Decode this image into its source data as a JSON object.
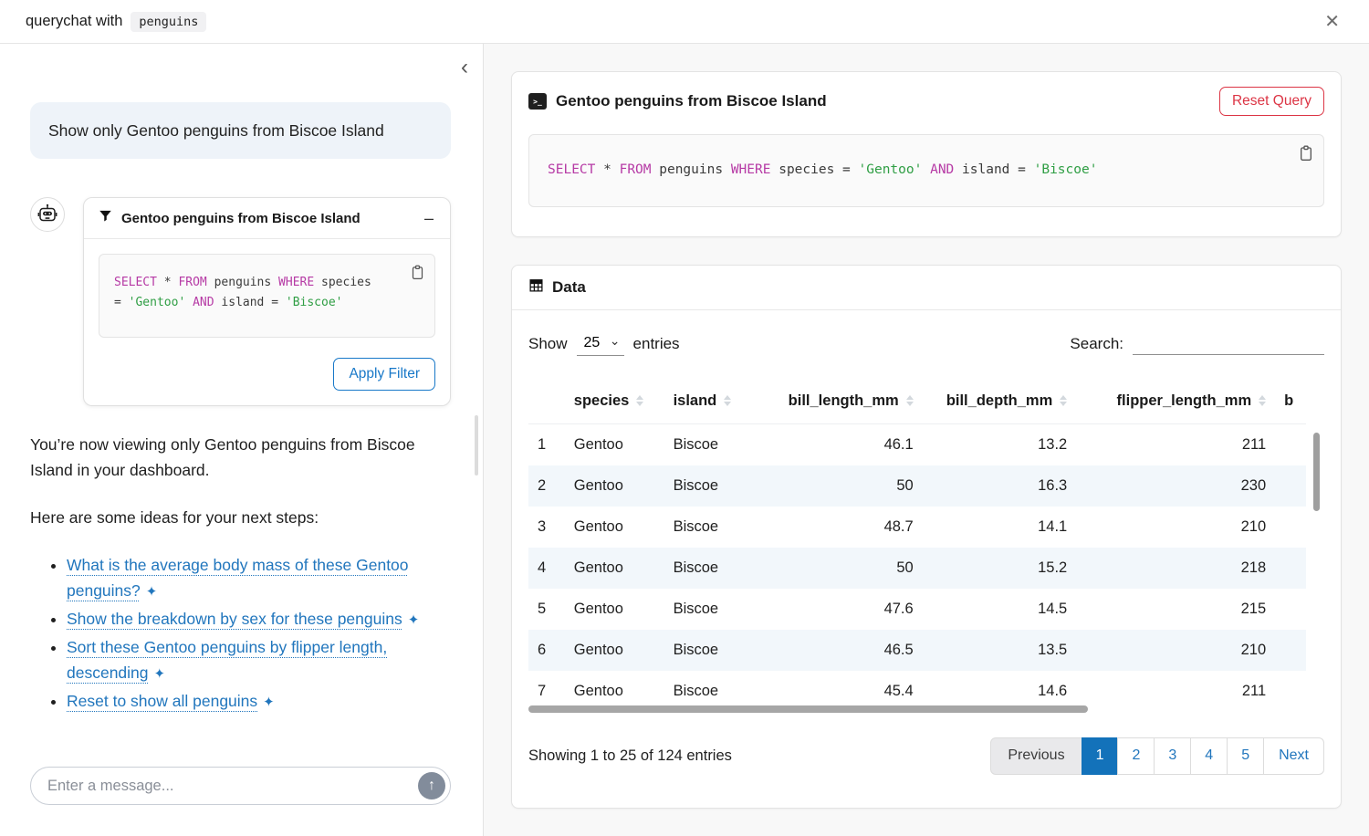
{
  "header": {
    "title_prefix": "querychat with",
    "dataset": "penguins"
  },
  "icons": {
    "close": "✕",
    "collapse_chevron": "‹",
    "minimize": "–",
    "sparkle": "✦",
    "send_arrow": "↑",
    "terminal_glyph": ">_",
    "caret": "⌄"
  },
  "chat": {
    "user_message": "Show only Gentoo penguins from Biscoe Island",
    "filter_card": {
      "title": "Gentoo penguins from Biscoe Island",
      "apply_label": "Apply Filter",
      "sql_lines": [
        [
          {
            "t": "kw",
            "v": "SELECT"
          },
          {
            "t": "p",
            "v": " * "
          },
          {
            "t": "kw",
            "v": "FROM"
          },
          {
            "t": "p",
            "v": " penguins "
          },
          {
            "t": "kw",
            "v": "WHERE"
          },
          {
            "t": "p",
            "v": " species"
          }
        ],
        [
          {
            "t": "p",
            "v": "= "
          },
          {
            "t": "str",
            "v": "'Gentoo'"
          },
          {
            "t": "p",
            "v": " "
          },
          {
            "t": "kw",
            "v": "AND"
          },
          {
            "t": "p",
            "v": " island = "
          },
          {
            "t": "str",
            "v": "'Biscoe'"
          }
        ]
      ]
    },
    "response": {
      "p1": "You’re now viewing only Gentoo penguins from Biscoe Island in your dashboard.",
      "p2": "Here are some ideas for your next steps:",
      "suggestions": [
        "What is the average body mass of these Gentoo penguins?",
        "Show the breakdown by sex for these penguins",
        "Sort these Gentoo penguins by flipper length, descending",
        "Reset to show all penguins"
      ]
    },
    "input_placeholder": "Enter a message..."
  },
  "query_card": {
    "title": "Gentoo penguins from Biscoe Island",
    "reset_label": "Reset Query",
    "sql_tokens": [
      {
        "t": "kw",
        "v": "SELECT"
      },
      {
        "t": "p",
        "v": " * "
      },
      {
        "t": "kw",
        "v": "FROM"
      },
      {
        "t": "p",
        "v": " penguins "
      },
      {
        "t": "kw",
        "v": "WHERE"
      },
      {
        "t": "p",
        "v": " species = "
      },
      {
        "t": "str",
        "v": "'Gentoo'"
      },
      {
        "t": "p",
        "v": " "
      },
      {
        "t": "kw",
        "v": "AND"
      },
      {
        "t": "p",
        "v": " island = "
      },
      {
        "t": "str",
        "v": "'Biscoe'"
      }
    ]
  },
  "data_card": {
    "title": "Data",
    "controls": {
      "show_label": "Show",
      "page_size": "25",
      "entries_label": "entries",
      "search_label": "Search:"
    },
    "table": {
      "columns": [
        "species",
        "island",
        "bill_length_mm",
        "bill_depth_mm",
        "flipper_length_mm",
        "b"
      ],
      "rows": [
        [
          "1",
          "Gentoo",
          "Biscoe",
          "46.1",
          "13.2",
          "211"
        ],
        [
          "2",
          "Gentoo",
          "Biscoe",
          "50",
          "16.3",
          "230"
        ],
        [
          "3",
          "Gentoo",
          "Biscoe",
          "48.7",
          "14.1",
          "210"
        ],
        [
          "4",
          "Gentoo",
          "Biscoe",
          "50",
          "15.2",
          "218"
        ],
        [
          "5",
          "Gentoo",
          "Biscoe",
          "47.6",
          "14.5",
          "215"
        ],
        [
          "6",
          "Gentoo",
          "Biscoe",
          "46.5",
          "13.5",
          "210"
        ],
        [
          "7",
          "Gentoo",
          "Biscoe",
          "45.4",
          "14.6",
          "211"
        ]
      ]
    },
    "footer": {
      "info": "Showing 1 to 25 of 124 entries",
      "prev_label": "Previous",
      "pages": [
        "1",
        "2",
        "3",
        "4",
        "5"
      ],
      "active_page": "1",
      "next_label": "Next"
    }
  },
  "colors": {
    "accent_blue": "#2176bd",
    "active_page_bg": "#1372ba",
    "danger_red": "#dc3545",
    "sql_keyword": "#b63aa5",
    "sql_string": "#2f9e44",
    "row_stripe": "#f2f7fb",
    "user_bubble_bg": "#eef3f9"
  }
}
